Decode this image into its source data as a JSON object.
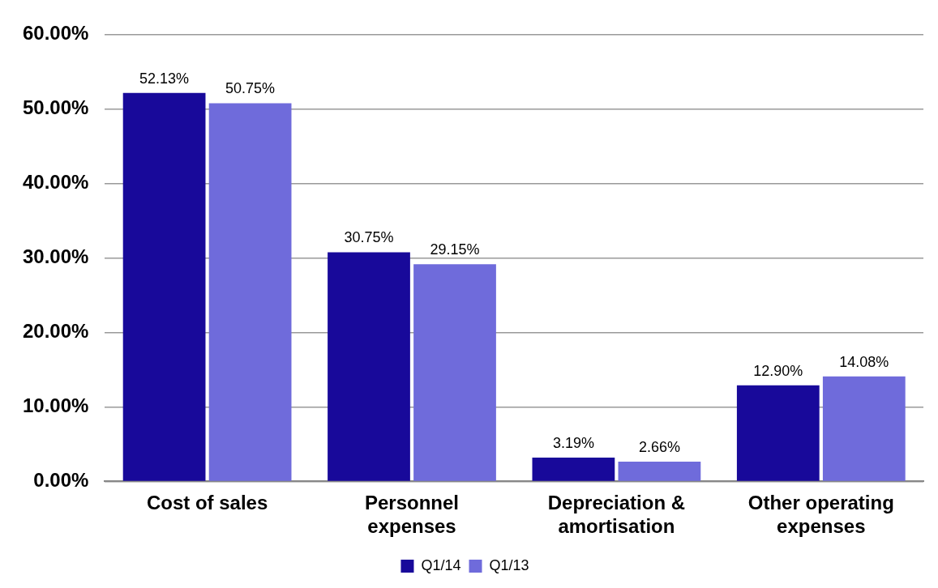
{
  "chart_data": {
    "type": "bar",
    "categories": [
      "Cost of sales",
      "Personnel expenses",
      "Depreciation & amortisation",
      "Other operating expenses"
    ],
    "series": [
      {
        "name": "Q1/14",
        "color": "#18099a",
        "values": [
          52.13,
          30.75,
          3.19,
          12.9
        ],
        "value_labels": [
          "52.13%",
          "30.75%",
          "3.19%",
          "12.90%"
        ]
      },
      {
        "name": "Q1/13",
        "color": "#6f6bdb",
        "values": [
          50.75,
          29.15,
          2.66,
          14.08
        ],
        "value_labels": [
          "50.75%",
          "29.15%",
          "2.66%",
          "14.08%"
        ]
      }
    ],
    "ylim": [
      0,
      60
    ],
    "yticks": [
      {
        "value": 0,
        "label": "0.00%"
      },
      {
        "value": 10,
        "label": "10.00%"
      },
      {
        "value": 20,
        "label": "20.00%"
      },
      {
        "value": 30,
        "label": "30.00%"
      },
      {
        "value": 40,
        "label": "40.00%"
      },
      {
        "value": 50,
        "label": "50.00%"
      },
      {
        "value": 60,
        "label": "60.00%"
      }
    ],
    "grid": "y",
    "legend": "bottom"
  }
}
